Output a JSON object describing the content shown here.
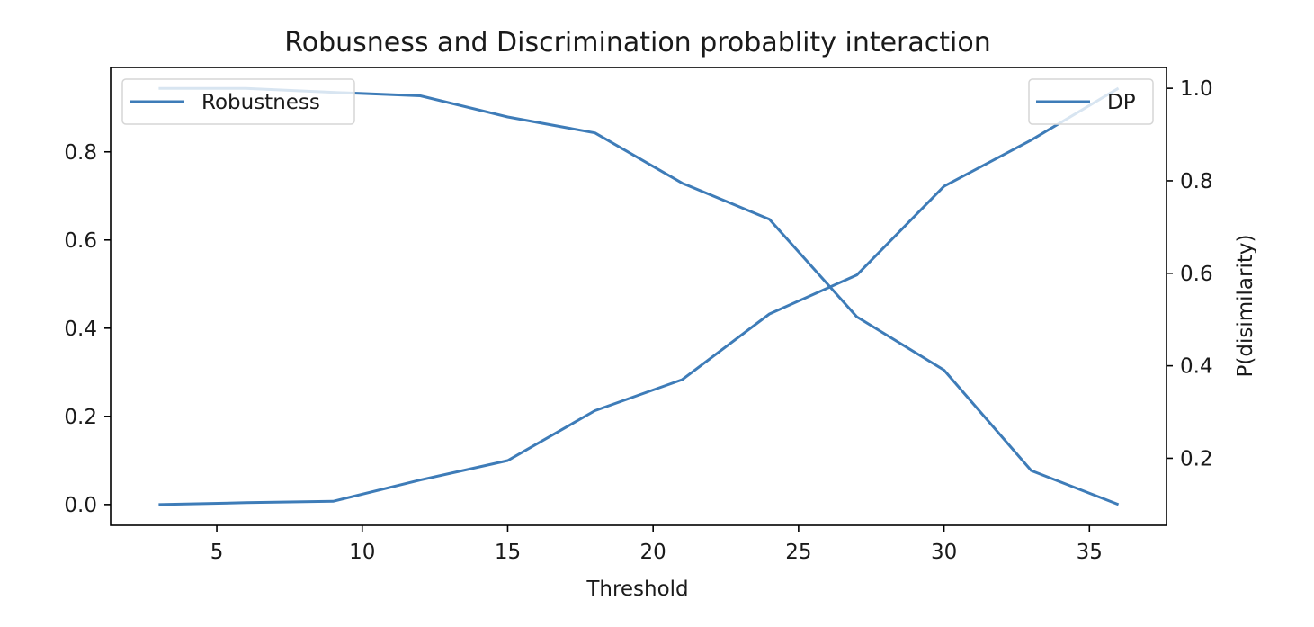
{
  "chart_data": {
    "type": "line",
    "title": "Robusness and Discrimination probablity interaction",
    "xlabel": "Threshold",
    "ylabel": "",
    "ylabel_right": "P(disimilarity)",
    "xlim": [
      1.35,
      37.65
    ],
    "ylim": [
      -0.0472,
      0.9913
    ],
    "ylim_right": [
      0.055,
      1.045
    ],
    "x_ticks": [
      5,
      10,
      15,
      20,
      25,
      30,
      35
    ],
    "y_ticks": [
      0.0,
      0.2,
      0.4,
      0.6,
      0.8
    ],
    "y_ticks_right": [
      0.2,
      0.4,
      0.6,
      0.8,
      1.0
    ],
    "grid": false,
    "x": [
      3,
      6,
      9,
      12,
      15,
      18,
      21,
      24,
      27,
      30,
      33,
      36
    ],
    "series": [
      {
        "name": "Robustness",
        "axis": "left",
        "color": "#3e7cb8",
        "values": [
          0.944,
          0.944,
          0.935,
          0.927,
          0.879,
          0.843,
          0.729,
          0.647,
          0.426,
          0.305,
          0.077,
          0.0
        ],
        "legend_position": "upper left"
      },
      {
        "name": "DP",
        "axis": "right",
        "color": "#3e7cb8",
        "values": [
          0.1,
          0.104,
          0.107,
          0.153,
          0.195,
          0.303,
          0.37,
          0.512,
          0.596,
          0.788,
          0.888,
          1.0
        ],
        "legend_position": "upper right"
      }
    ]
  }
}
